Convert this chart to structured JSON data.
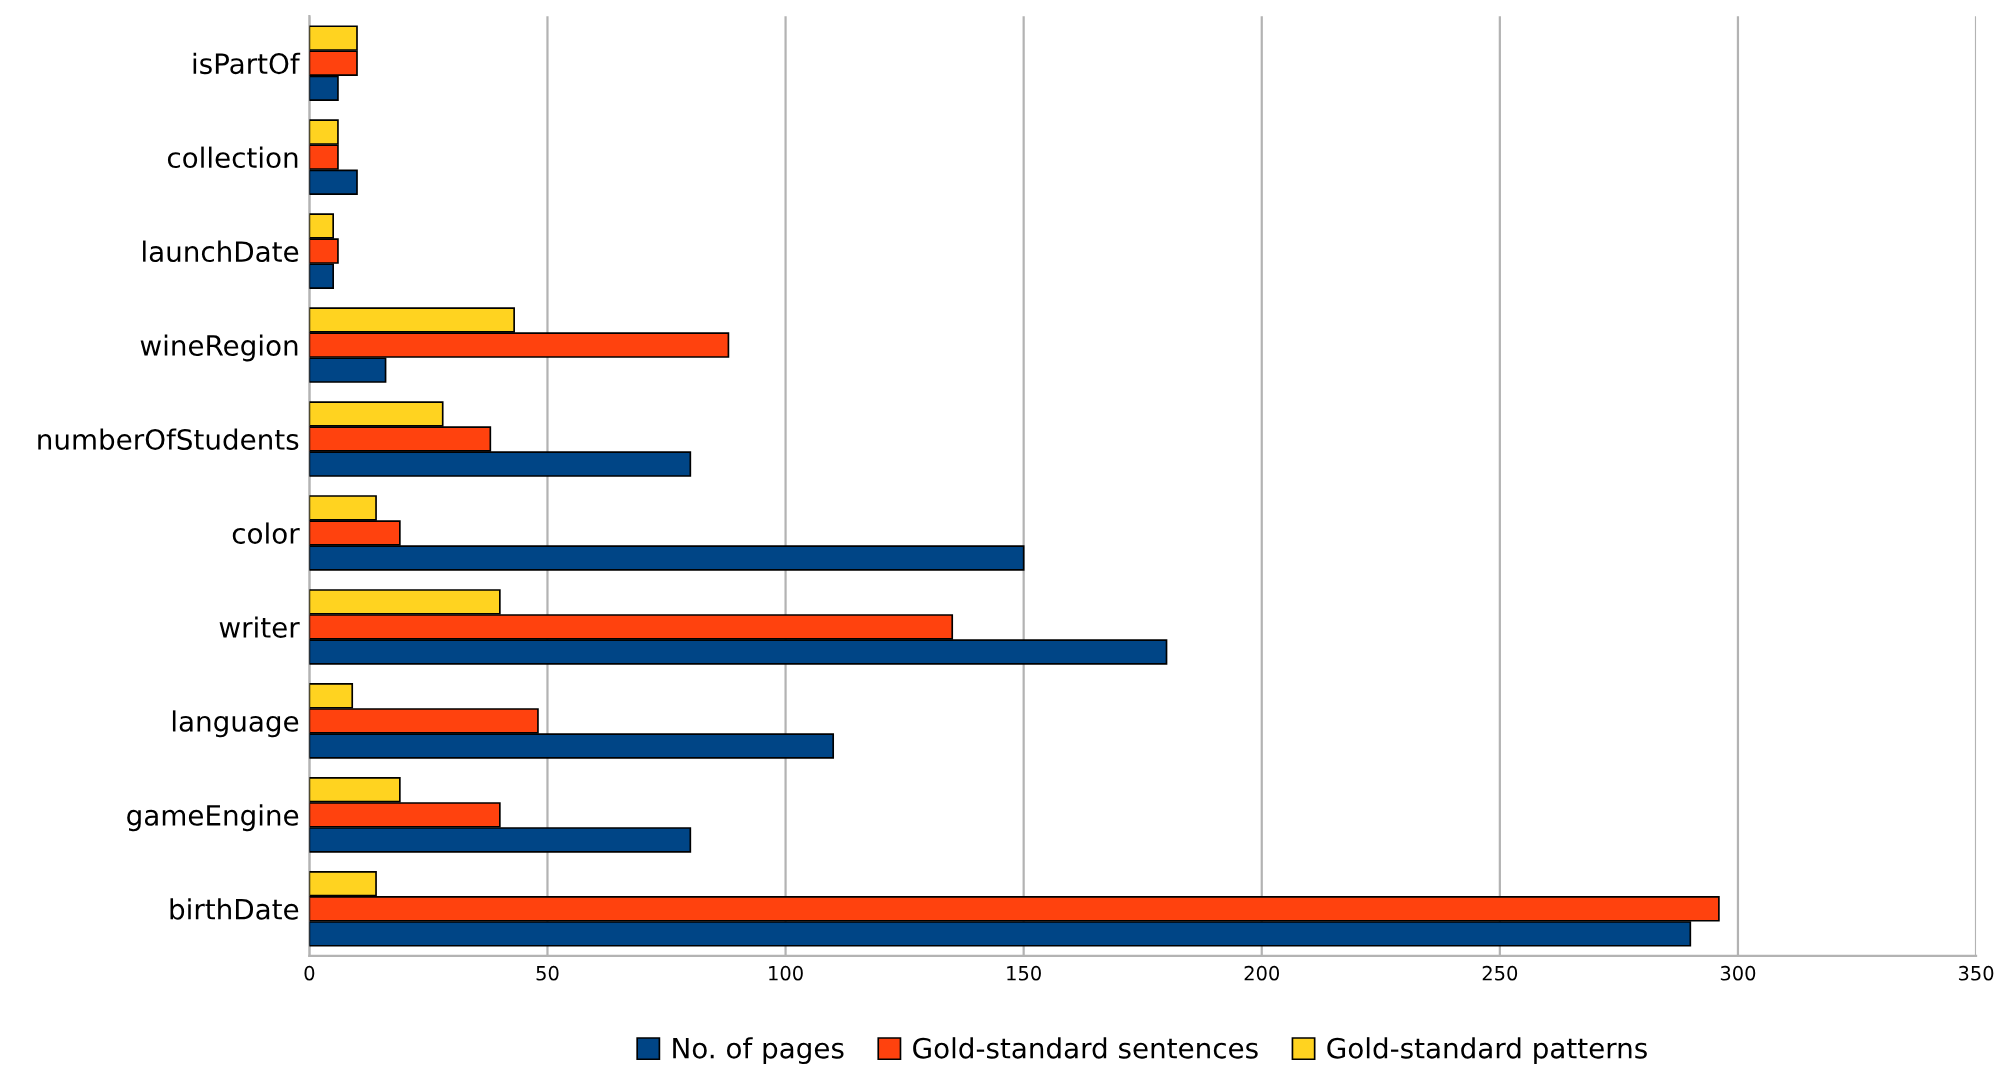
{
  "chart_data": {
    "type": "bar",
    "orientation": "horizontal",
    "categories": [
      "isPartOf",
      "collection",
      "launchDate",
      "wineRegion",
      "numberOfStudents",
      "color",
      "writer",
      "language",
      "gameEngine",
      "birthDate"
    ],
    "series": [
      {
        "name": "No. of pages",
        "color": "#004586",
        "values": [
          6,
          10,
          5,
          16,
          80,
          150,
          180,
          110,
          80,
          290
        ]
      },
      {
        "name": "Gold-standard sentences",
        "color": "#ff420e",
        "values": [
          10,
          6,
          6,
          88,
          38,
          19,
          135,
          48,
          40,
          296
        ]
      },
      {
        "name": "Gold-standard patterns",
        "color": "#ffd320",
        "values": [
          10,
          6,
          5,
          43,
          28,
          14,
          40,
          9,
          19,
          14
        ]
      }
    ],
    "xlim": [
      0,
      350
    ],
    "xticks": [
      0,
      50,
      100,
      150,
      200,
      250,
      300,
      350
    ],
    "grid": "x",
    "legend": "bottom"
  }
}
